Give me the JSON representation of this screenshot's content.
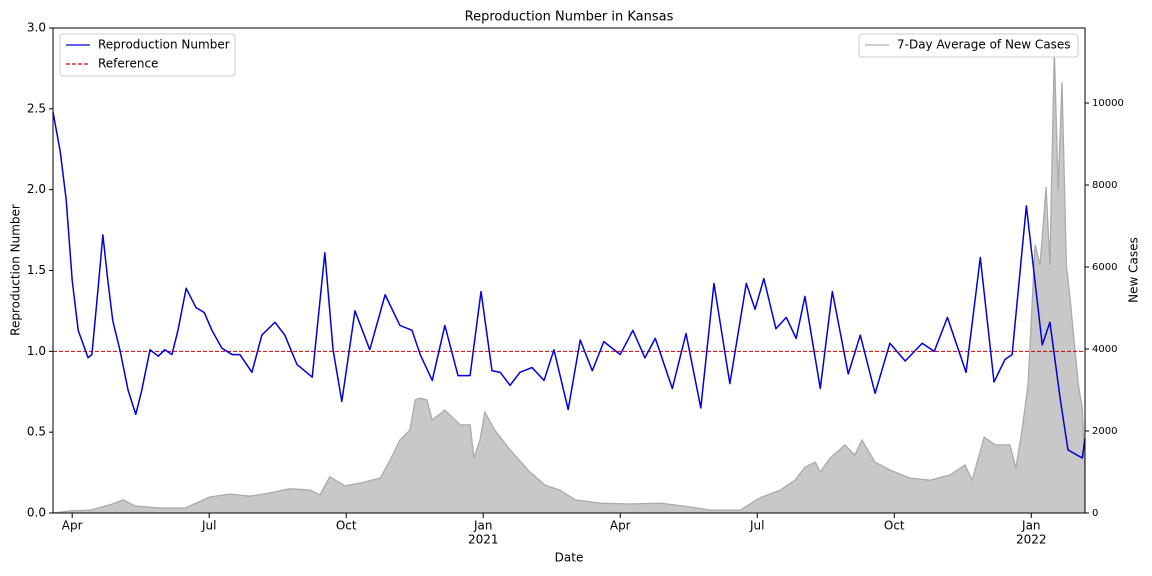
{
  "chart_data": {
    "type": "line",
    "title": "Reproduction Number in Kansas",
    "xlabel": "Date",
    "ylabel": "Reproduction Number",
    "y2label": "New Cases",
    "xlim": [
      2020.215,
      2022.098
    ],
    "ylim": [
      0,
      3.0
    ],
    "y2lim": [
      0,
      11830
    ],
    "xticks": [
      {
        "value": 2020.25,
        "label": "Apr"
      },
      {
        "value": 2020.5,
        "label": "Jul"
      },
      {
        "value": 2020.75,
        "label": "Oct"
      },
      {
        "value": 2021.0,
        "label": "Jan",
        "year": "2021"
      },
      {
        "value": 2021.25,
        "label": "Apr"
      },
      {
        "value": 2021.5,
        "label": "Jul"
      },
      {
        "value": 2021.75,
        "label": "Oct"
      },
      {
        "value": 2022.0,
        "label": "Jan",
        "year": "2022"
      }
    ],
    "yticks": [
      {
        "value": 0,
        "label": "0.0"
      },
      0.5,
      {
        "value": 1,
        "label": "1.0"
      },
      1.5,
      {
        "value": 2,
        "label": "2.0"
      },
      2.5,
      {
        "value": 3,
        "label": "3.0"
      }
    ],
    "y2ticks": [
      0,
      2000,
      4000,
      6000,
      8000,
      10000
    ],
    "legend": "upper left",
    "legend2": "upper right",
    "reference": {
      "name": "Reference",
      "color": "#cc0000",
      "value": 1
    },
    "series": [
      {
        "name": "Reproduction Number",
        "color": "#0000dd",
        "kind": "line",
        "x": [
          2020.215,
          2020.228,
          2020.239,
          2020.25,
          2020.261,
          2020.279,
          2020.286,
          2020.297,
          2020.306,
          2020.315,
          2020.324,
          2020.337,
          2020.352,
          2020.366,
          2020.377,
          2020.392,
          2020.407,
          2020.419,
          2020.432,
          2020.443,
          2020.458,
          2020.476,
          2020.491,
          2020.505,
          2020.523,
          2020.542,
          2020.556,
          2020.578,
          2020.596,
          2020.62,
          2020.638,
          2020.66,
          2020.688,
          2020.711,
          2020.726,
          2020.742,
          2020.766,
          2020.793,
          2020.821,
          2020.848,
          2020.87,
          2020.885,
          2020.907,
          2020.93,
          2020.954,
          2020.976,
          2020.996,
          2021.016,
          2021.031,
          2021.049,
          2021.067,
          2021.089,
          2021.111,
          2021.129,
          2021.155,
          2021.177,
          2021.199,
          2021.22,
          2021.25,
          2021.273,
          2021.295,
          2021.314,
          2021.345,
          2021.37,
          2021.397,
          2021.421,
          2021.45,
          2021.48,
          2021.496,
          2021.512,
          2021.534,
          2021.553,
          2021.571,
          2021.587,
          2021.615,
          2021.637,
          2021.666,
          2021.688,
          2021.715,
          2021.742,
          2021.77,
          2021.801,
          2021.823,
          2021.847,
          2021.881,
          2021.907,
          2021.932,
          2021.952,
          2021.965,
          2021.991,
          2022.02,
          2022.034,
          2022.053,
          2022.067,
          2022.093,
          2022.098
        ],
        "values": [
          2.48,
          2.24,
          1.94,
          1.44,
          1.13,
          0.96,
          0.98,
          1.38,
          1.72,
          1.44,
          1.19,
          1.01,
          0.76,
          0.61,
          0.76,
          1.01,
          0.97,
          1.01,
          0.98,
          1.13,
          1.39,
          1.27,
          1.24,
          1.13,
          1.02,
          0.98,
          0.98,
          0.87,
          1.1,
          1.18,
          1.1,
          0.92,
          0.84,
          1.61,
          1.01,
          0.69,
          1.25,
          1.01,
          1.35,
          1.16,
          1.13,
          0.98,
          0.82,
          1.16,
          0.85,
          0.85,
          1.37,
          0.88,
          0.87,
          0.79,
          0.87,
          0.9,
          0.82,
          1.01,
          0.64,
          1.07,
          0.88,
          1.06,
          0.98,
          1.13,
          0.96,
          1.08,
          0.77,
          1.11,
          0.65,
          1.42,
          0.8,
          1.42,
          1.26,
          1.45,
          1.14,
          1.21,
          1.08,
          1.34,
          0.77,
          1.37,
          0.86,
          1.1,
          0.74,
          1.05,
          0.94,
          1.05,
          1.0,
          1.21,
          0.87,
          1.58,
          0.81,
          0.95,
          0.98,
          1.9,
          1.04,
          1.18,
          0.7,
          0.39,
          0.34,
          0.46
        ]
      },
      {
        "name": "7-Day Average of New Cases",
        "color": "#aaaaaa",
        "fill": "#c8c8c8",
        "kind": "area",
        "axis": "y2",
        "x": [
          2020.215,
          2020.246,
          2020.283,
          2020.319,
          2020.343,
          2020.365,
          2020.41,
          2020.456,
          2020.501,
          2020.538,
          2020.574,
          2020.611,
          2020.647,
          2020.684,
          2020.702,
          2020.72,
          2020.748,
          2020.775,
          2020.812,
          2020.83,
          2020.848,
          2020.866,
          2020.876,
          2020.885,
          2020.897,
          2020.907,
          2020.93,
          2020.958,
          2020.976,
          2020.983,
          2020.994,
          2021.003,
          2021.021,
          2021.049,
          2021.085,
          2021.113,
          2021.14,
          2021.168,
          2021.213,
          2021.268,
          2021.323,
          2021.377,
          2021.414,
          2021.469,
          2021.505,
          2021.542,
          2021.569,
          2021.587,
          2021.606,
          2021.615,
          2021.633,
          2021.66,
          2021.678,
          2021.691,
          2021.715,
          2021.742,
          2021.779,
          2021.815,
          2021.852,
          2021.879,
          2021.892,
          2021.914,
          2021.934,
          2021.961,
          2021.972,
          2021.983,
          2021.994,
          2022.007,
          2022.016,
          2022.027,
          2022.034,
          2022.042,
          2022.049,
          2022.056,
          2022.064,
          2022.071,
          2022.078,
          2022.086,
          2022.093,
          2022.098
        ],
        "values": [
          0,
          50,
          70,
          200,
          320,
          170,
          120,
          120,
          390,
          460,
          410,
          490,
          590,
          560,
          440,
          880,
          660,
          730,
          850,
          1290,
          1780,
          2020,
          2760,
          2800,
          2760,
          2270,
          2510,
          2150,
          2150,
          1340,
          1780,
          2460,
          2020,
          1540,
          1000,
          680,
          560,
          320,
          240,
          220,
          240,
          150,
          70,
          70,
          370,
          560,
          800,
          1120,
          1240,
          1000,
          1340,
          1660,
          1410,
          1780,
          1240,
          1050,
          850,
          800,
          930,
          1170,
          800,
          1850,
          1660,
          1660,
          1100,
          2020,
          3120,
          6540,
          6050,
          7950,
          6050,
          11290,
          7880,
          10510,
          6050,
          5200,
          4220,
          3120,
          2560,
          1050
        ]
      }
    ]
  }
}
